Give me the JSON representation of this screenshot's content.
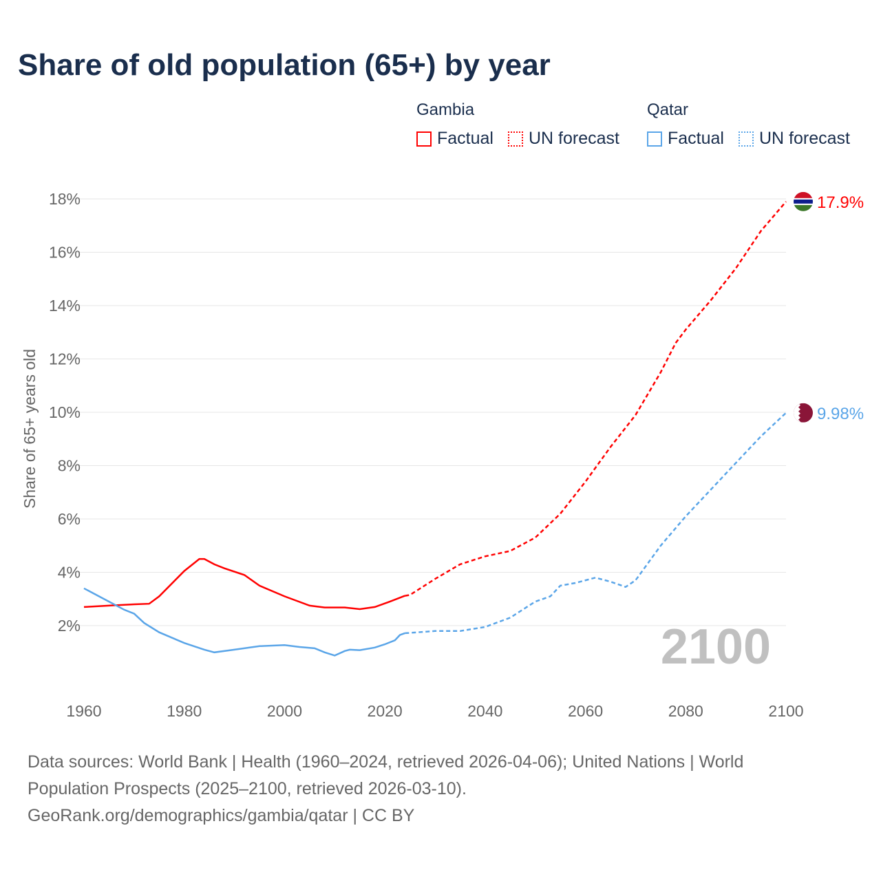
{
  "title": "Share of old population (65+) by year",
  "legend": {
    "groups": [
      {
        "name": "Gambia",
        "factual": "Factual",
        "forecast": "UN forecast",
        "color": "#ff0000"
      },
      {
        "name": "Qatar",
        "factual": "Factual",
        "forecast": "UN forecast",
        "color": "#5aa5e8"
      }
    ]
  },
  "source": {
    "line1": "Data sources: World Bank | Health (1960–2024, retrieved 2026-04-06); United Nations | World Population Prospects (2025–2100, retrieved 2026-03-10).",
    "line2": "GeoRank.org/demographics/gambia/qatar | CC BY"
  },
  "chart_data": {
    "type": "line",
    "title": "Share of old population (65+) by year",
    "ylabel": "Share of 65+ years old",
    "xlim": [
      1960,
      2100
    ],
    "ylim": [
      0,
      18
    ],
    "xticks": [
      "1960",
      "1980",
      "2000",
      "2020",
      "2040",
      "2060",
      "2080",
      "2100"
    ],
    "yticks": [
      "2%",
      "4%",
      "6%",
      "8%",
      "10%",
      "12%",
      "14%",
      "16%",
      "18%"
    ],
    "year_label": "2100",
    "series": [
      {
        "name": "Gambia",
        "color": "#ff0000",
        "end_label": "17.9%",
        "factual": [
          [
            1960,
            2.7
          ],
          [
            1965,
            2.75
          ],
          [
            1970,
            2.8
          ],
          [
            1973,
            2.82
          ],
          [
            1975,
            3.1
          ],
          [
            1980,
            4.05
          ],
          [
            1983,
            4.5
          ],
          [
            1984,
            4.5
          ],
          [
            1986,
            4.3
          ],
          [
            1988,
            4.15
          ],
          [
            1992,
            3.9
          ],
          [
            1995,
            3.5
          ],
          [
            2000,
            3.1
          ],
          [
            2005,
            2.75
          ],
          [
            2008,
            2.68
          ],
          [
            2012,
            2.68
          ],
          [
            2015,
            2.62
          ],
          [
            2018,
            2.7
          ],
          [
            2021,
            2.9
          ],
          [
            2024,
            3.12
          ]
        ],
        "forecast": [
          [
            2024,
            3.12
          ],
          [
            2025,
            3.15
          ],
          [
            2030,
            3.75
          ],
          [
            2035,
            4.3
          ],
          [
            2040,
            4.6
          ],
          [
            2045,
            4.8
          ],
          [
            2050,
            5.3
          ],
          [
            2055,
            6.2
          ],
          [
            2060,
            7.4
          ],
          [
            2065,
            8.7
          ],
          [
            2070,
            9.9
          ],
          [
            2075,
            11.5
          ],
          [
            2078,
            12.6
          ],
          [
            2080,
            13.1
          ],
          [
            2085,
            14.2
          ],
          [
            2090,
            15.4
          ],
          [
            2095,
            16.8
          ],
          [
            2100,
            17.9
          ]
        ]
      },
      {
        "name": "Qatar",
        "color": "#5aa5e8",
        "end_label": "9.98%",
        "factual": [
          [
            1960,
            3.4
          ],
          [
            1965,
            2.9
          ],
          [
            1968,
            2.6
          ],
          [
            1970,
            2.45
          ],
          [
            1972,
            2.1
          ],
          [
            1975,
            1.75
          ],
          [
            1980,
            1.35
          ],
          [
            1984,
            1.1
          ],
          [
            1986,
            1.0
          ],
          [
            1990,
            1.1
          ],
          [
            1995,
            1.23
          ],
          [
            2000,
            1.27
          ],
          [
            2003,
            1.2
          ],
          [
            2006,
            1.15
          ],
          [
            2008,
            1.0
          ],
          [
            2010,
            0.88
          ],
          [
            2012,
            1.05
          ],
          [
            2013,
            1.1
          ],
          [
            2015,
            1.08
          ],
          [
            2018,
            1.18
          ],
          [
            2020,
            1.3
          ],
          [
            2022,
            1.45
          ],
          [
            2023,
            1.65
          ],
          [
            2024,
            1.72
          ]
        ],
        "forecast": [
          [
            2024,
            1.72
          ],
          [
            2025,
            1.73
          ],
          [
            2030,
            1.8
          ],
          [
            2035,
            1.8
          ],
          [
            2040,
            1.95
          ],
          [
            2045,
            2.3
          ],
          [
            2050,
            2.9
          ],
          [
            2053,
            3.1
          ],
          [
            2055,
            3.5
          ],
          [
            2058,
            3.6
          ],
          [
            2062,
            3.8
          ],
          [
            2065,
            3.65
          ],
          [
            2068,
            3.45
          ],
          [
            2070,
            3.7
          ],
          [
            2075,
            5.0
          ],
          [
            2080,
            6.1
          ],
          [
            2085,
            7.1
          ],
          [
            2090,
            8.1
          ],
          [
            2095,
            9.1
          ],
          [
            2100,
            9.98
          ]
        ]
      }
    ]
  }
}
